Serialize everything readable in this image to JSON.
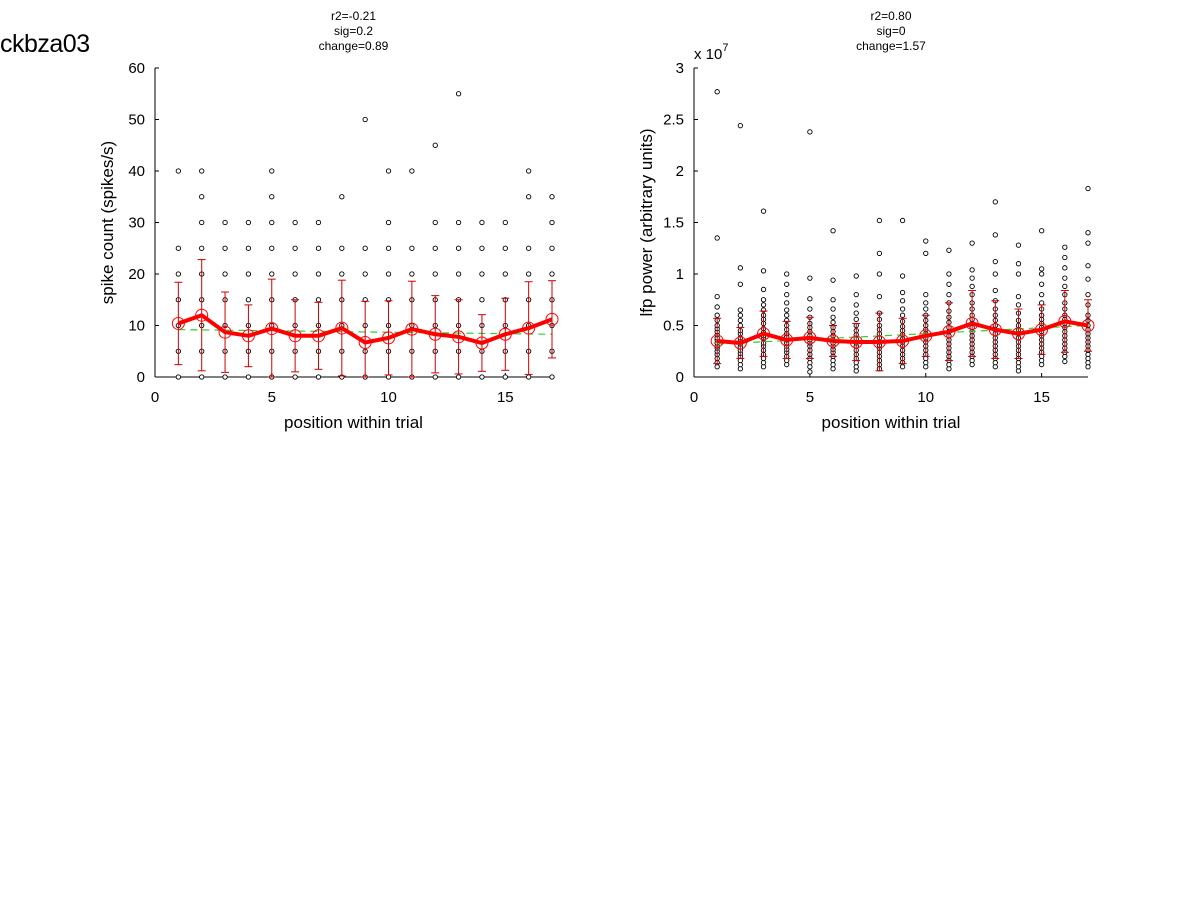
{
  "figure": {
    "title": "ckbza03"
  },
  "colors": {
    "points": "#000000",
    "mean": "#ff0000",
    "errorbar": "#cc0000",
    "fit": "#33cc33"
  },
  "chart_data": [
    {
      "type": "scatter",
      "xlabel": "position within trial",
      "ylabel": "spike count (spikes/s)",
      "xlim": [
        0,
        17
      ],
      "ylim": [
        0,
        60
      ],
      "xticks": [
        "0",
        "5",
        "10",
        "15"
      ],
      "yticks": [
        "0",
        "10",
        "20",
        "30",
        "40",
        "50",
        "60"
      ],
      "exponent": "",
      "stats": [
        "r2=-0.21",
        "sig=0.2",
        "change=0.89"
      ],
      "fit": {
        "x": [
          1,
          17
        ],
        "y": [
          9.2,
          8.3
        ]
      },
      "series": [
        {
          "type": "scatter",
          "x": [
            1,
            1,
            1,
            1,
            1,
            1,
            1,
            2,
            2,
            2,
            2,
            2,
            2,
            2,
            2,
            2,
            3,
            3,
            3,
            3,
            3,
            3,
            3,
            4,
            4,
            4,
            4,
            4,
            4,
            4,
            5,
            5,
            5,
            5,
            5,
            5,
            5,
            5,
            5,
            6,
            6,
            6,
            6,
            6,
            6,
            6,
            7,
            7,
            7,
            7,
            7,
            7,
            7,
            8,
            8,
            8,
            8,
            8,
            8,
            8,
            9,
            9,
            9,
            9,
            9,
            9,
            9,
            10,
            10,
            10,
            10,
            10,
            10,
            10,
            10,
            11,
            11,
            11,
            11,
            11,
            11,
            11,
            12,
            12,
            12,
            12,
            12,
            12,
            12,
            12,
            13,
            13,
            13,
            13,
            13,
            13,
            13,
            13,
            14,
            14,
            14,
            14,
            14,
            14,
            14,
            15,
            15,
            15,
            15,
            15,
            15,
            15,
            16,
            16,
            16,
            16,
            16,
            16,
            16,
            16,
            17,
            17,
            17,
            17,
            17,
            17,
            17,
            17
          ],
          "y": [
            0,
            5,
            10,
            15,
            20,
            25,
            40,
            0,
            5,
            10,
            15,
            20,
            25,
            30,
            35,
            40,
            0,
            5,
            10,
            15,
            20,
            25,
            30,
            0,
            5,
            10,
            15,
            20,
            25,
            30,
            0,
            5,
            10,
            15,
            20,
            25,
            30,
            35,
            40,
            0,
            5,
            10,
            15,
            20,
            25,
            30,
            0,
            5,
            10,
            15,
            20,
            25,
            30,
            0,
            5,
            10,
            15,
            20,
            25,
            35,
            0,
            5,
            10,
            15,
            20,
            25,
            50,
            0,
            5,
            10,
            15,
            20,
            25,
            30,
            40,
            0,
            5,
            10,
            15,
            20,
            25,
            40,
            0,
            5,
            10,
            15,
            20,
            25,
            30,
            45,
            0,
            5,
            10,
            15,
            20,
            25,
            30,
            55,
            0,
            5,
            10,
            15,
            20,
            25,
            30,
            0,
            5,
            10,
            15,
            20,
            25,
            30,
            0,
            5,
            10,
            15,
            20,
            25,
            35,
            40,
            0,
            5,
            10,
            15,
            20,
            25,
            30,
            35
          ]
        },
        {
          "type": "line",
          "x": [
            1,
            2,
            3,
            4,
            5,
            6,
            7,
            8,
            9,
            10,
            11,
            12,
            13,
            14,
            15,
            16,
            17
          ],
          "y": [
            10.4,
            12.0,
            8.7,
            8.0,
            9.4,
            8.0,
            8.0,
            9.5,
            6.7,
            7.6,
            9.3,
            8.3,
            7.8,
            6.6,
            8.3,
            9.5,
            11.2
          ],
          "err": [
            8.0,
            10.8,
            7.8,
            6.0,
            9.6,
            7.0,
            6.5,
            9.3,
            8.0,
            7.2,
            9.3,
            7.5,
            7.2,
            5.5,
            7.0,
            9.0,
            7.5
          ]
        }
      ]
    },
    {
      "type": "scatter",
      "xlabel": "position within trial",
      "ylabel": "lfp power (arbitrary units)",
      "xlim": [
        0,
        17
      ],
      "ylim": [
        0,
        3
      ],
      "xticks": [
        "0",
        "5",
        "10",
        "15"
      ],
      "yticks": [
        "0",
        "0.5",
        "1",
        "1.5",
        "2",
        "2.5",
        "3"
      ],
      "exponent": {
        "base": "x 10",
        "power": "7"
      },
      "stats": [
        "r2=0.80",
        "sig=0",
        "change=1.57"
      ],
      "fit": {
        "x": [
          1,
          17
        ],
        "y": [
          0.32,
          0.5
        ]
      },
      "series": [
        {
          "type": "scatter",
          "x": [
            1,
            1,
            1,
            1,
            1,
            1,
            1,
            1,
            1,
            1,
            1,
            1,
            1,
            1,
            1,
            1,
            1,
            1,
            1,
            1,
            2,
            2,
            2,
            2,
            2,
            2,
            2,
            2,
            2,
            2,
            2,
            2,
            2,
            2,
            2,
            2,
            2,
            2,
            2,
            3,
            3,
            3,
            3,
            3,
            3,
            3,
            3,
            3,
            3,
            3,
            3,
            3,
            3,
            3,
            3,
            3,
            3,
            3,
            3,
            4,
            4,
            4,
            4,
            4,
            4,
            4,
            4,
            4,
            4,
            4,
            4,
            4,
            4,
            4,
            4,
            4,
            4,
            4,
            5,
            5,
            5,
            5,
            5,
            5,
            5,
            5,
            5,
            5,
            5,
            5,
            5,
            5,
            5,
            5,
            5,
            5,
            6,
            6,
            6,
            6,
            6,
            6,
            6,
            6,
            6,
            6,
            6,
            6,
            6,
            6,
            6,
            6,
            6,
            6,
            7,
            7,
            7,
            7,
            7,
            7,
            7,
            7,
            7,
            7,
            7,
            7,
            7,
            7,
            7,
            7,
            7,
            8,
            8,
            8,
            8,
            8,
            8,
            8,
            8,
            8,
            8,
            8,
            8,
            8,
            8,
            8,
            8,
            8,
            8,
            9,
            9,
            9,
            9,
            9,
            9,
            9,
            9,
            9,
            9,
            9,
            9,
            9,
            9,
            9,
            9,
            9,
            9,
            10,
            10,
            10,
            10,
            10,
            10,
            10,
            10,
            10,
            10,
            10,
            10,
            10,
            10,
            10,
            10,
            10,
            10,
            11,
            11,
            11,
            11,
            11,
            11,
            11,
            11,
            11,
            11,
            11,
            11,
            11,
            11,
            11,
            11,
            11,
            11,
            11,
            12,
            12,
            12,
            12,
            12,
            12,
            12,
            12,
            12,
            12,
            12,
            12,
            12,
            12,
            12,
            12,
            12,
            12,
            12,
            12,
            13,
            13,
            13,
            13,
            13,
            13,
            13,
            13,
            13,
            13,
            13,
            13,
            13,
            13,
            13,
            13,
            13,
            13,
            13,
            13,
            14,
            14,
            14,
            14,
            14,
            14,
            14,
            14,
            14,
            14,
            14,
            14,
            14,
            14,
            14,
            14,
            14,
            14,
            14,
            15,
            15,
            15,
            15,
            15,
            15,
            15,
            15,
            15,
            15,
            15,
            15,
            15,
            15,
            15,
            15,
            15,
            15,
            15,
            15,
            16,
            16,
            16,
            16,
            16,
            16,
            16,
            16,
            16,
            16,
            16,
            16,
            16,
            16,
            16,
            16,
            16,
            16,
            16,
            16,
            17,
            17,
            17,
            17,
            17,
            17,
            17,
            17,
            17,
            17,
            17,
            17,
            17,
            17,
            17,
            17,
            17,
            17,
            17,
            17
          ],
          "y": [
            0.1,
            0.14,
            0.18,
            0.22,
            0.25,
            0.28,
            0.3,
            0.33,
            0.36,
            0.38,
            0.41,
            0.44,
            0.47,
            0.5,
            0.55,
            0.6,
            0.68,
            0.78,
            1.35,
            2.77,
            0.08,
            0.12,
            0.16,
            0.2,
            0.23,
            0.26,
            0.29,
            0.32,
            0.35,
            0.38,
            0.42,
            0.45,
            0.5,
            0.55,
            0.6,
            0.65,
            0.9,
            1.06,
            2.44,
            0.1,
            0.14,
            0.18,
            0.22,
            0.26,
            0.3,
            0.33,
            0.37,
            0.4,
            0.43,
            0.47,
            0.52,
            0.56,
            0.6,
            0.65,
            0.7,
            0.75,
            0.85,
            1.03,
            1.61,
            0.12,
            0.16,
            0.2,
            0.24,
            0.27,
            0.3,
            0.33,
            0.36,
            0.39,
            0.42,
            0.46,
            0.5,
            0.55,
            0.6,
            0.65,
            0.72,
            0.8,
            0.9,
            1.0,
            0.05,
            0.1,
            0.14,
            0.18,
            0.22,
            0.26,
            0.3,
            0.33,
            0.36,
            0.4,
            0.44,
            0.48,
            0.52,
            0.58,
            0.66,
            0.76,
            0.96,
            2.38,
            0.08,
            0.12,
            0.16,
            0.2,
            0.24,
            0.27,
            0.3,
            0.33,
            0.36,
            0.4,
            0.44,
            0.48,
            0.53,
            0.58,
            0.66,
            0.75,
            0.94,
            1.42,
            0.06,
            0.1,
            0.14,
            0.18,
            0.22,
            0.26,
            0.3,
            0.33,
            0.37,
            0.41,
            0.45,
            0.5,
            0.56,
            0.62,
            0.7,
            0.8,
            0.98,
            0.08,
            0.12,
            0.16,
            0.2,
            0.24,
            0.28,
            0.31,
            0.34,
            0.38,
            0.42,
            0.46,
            0.5,
            0.56,
            0.62,
            0.78,
            1.0,
            1.2,
            1.52,
            0.1,
            0.14,
            0.18,
            0.22,
            0.26,
            0.3,
            0.34,
            0.37,
            0.41,
            0.45,
            0.49,
            0.54,
            0.6,
            0.66,
            0.74,
            0.82,
            0.98,
            1.52,
            0.1,
            0.14,
            0.18,
            0.22,
            0.26,
            0.3,
            0.34,
            0.38,
            0.42,
            0.46,
            0.5,
            0.55,
            0.6,
            0.66,
            0.72,
            0.8,
            1.2,
            1.32,
            0.08,
            0.12,
            0.16,
            0.2,
            0.24,
            0.28,
            0.32,
            0.36,
            0.4,
            0.44,
            0.48,
            0.53,
            0.58,
            0.64,
            0.72,
            0.8,
            0.9,
            1.0,
            1.23,
            0.12,
            0.16,
            0.2,
            0.24,
            0.28,
            0.32,
            0.36,
            0.4,
            0.44,
            0.48,
            0.52,
            0.56,
            0.6,
            0.66,
            0.72,
            0.8,
            0.88,
            0.96,
            1.04,
            1.3,
            0.1,
            0.14,
            0.18,
            0.22,
            0.26,
            0.3,
            0.34,
            0.38,
            0.42,
            0.46,
            0.5,
            0.55,
            0.6,
            0.66,
            0.74,
            0.84,
            1.0,
            1.12,
            1.38,
            1.7,
            0.06,
            0.1,
            0.14,
            0.18,
            0.22,
            0.26,
            0.3,
            0.34,
            0.38,
            0.42,
            0.46,
            0.5,
            0.55,
            0.62,
            0.7,
            0.78,
            1.0,
            1.1,
            1.28,
            0.12,
            0.16,
            0.2,
            0.24,
            0.28,
            0.32,
            0.36,
            0.4,
            0.44,
            0.48,
            0.52,
            0.56,
            0.6,
            0.66,
            0.72,
            0.8,
            0.9,
            1.0,
            1.05,
            1.42,
            0.15,
            0.2,
            0.24,
            0.28,
            0.32,
            0.36,
            0.4,
            0.44,
            0.48,
            0.52,
            0.56,
            0.6,
            0.66,
            0.72,
            0.8,
            0.88,
            0.96,
            1.06,
            1.16,
            1.26,
            0.1,
            0.14,
            0.18,
            0.22,
            0.26,
            0.3,
            0.34,
            0.38,
            0.42,
            0.46,
            0.5,
            0.55,
            0.6,
            0.7,
            0.8,
            0.95,
            1.08,
            1.3,
            1.4,
            1.83
          ]
        },
        {
          "type": "line",
          "x": [
            1,
            2,
            3,
            4,
            5,
            6,
            7,
            8,
            9,
            10,
            11,
            12,
            13,
            14,
            15,
            16,
            17
          ],
          "y": [
            0.35,
            0.33,
            0.42,
            0.36,
            0.38,
            0.35,
            0.34,
            0.34,
            0.35,
            0.4,
            0.44,
            0.52,
            0.46,
            0.42,
            0.46,
            0.54,
            0.5
          ],
          "err": [
            0.22,
            0.15,
            0.22,
            0.18,
            0.2,
            0.15,
            0.18,
            0.28,
            0.22,
            0.2,
            0.28,
            0.32,
            0.28,
            0.24,
            0.24,
            0.3,
            0.25
          ]
        }
      ]
    }
  ]
}
